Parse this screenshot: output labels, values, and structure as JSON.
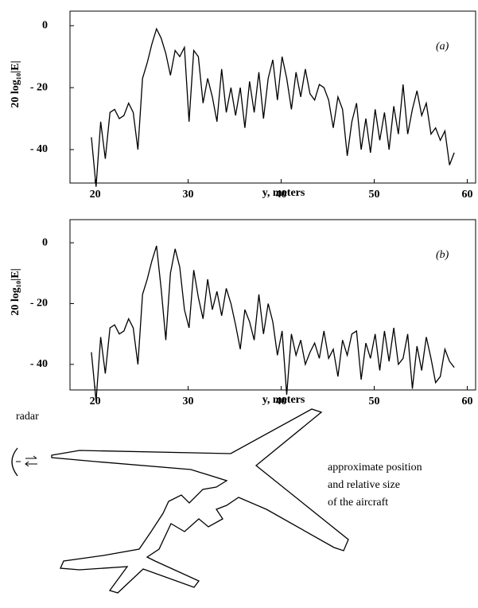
{
  "chart_data": [
    {
      "type": "line",
      "annotation": "(a)",
      "y_label": "20 log₁₀|E|",
      "x_label": "y, meters",
      "color": "#000000",
      "xlim": [
        17.3,
        60.9
      ],
      "ylim": [
        -50.8,
        4.7
      ],
      "xticks": [
        20,
        30,
        40,
        50,
        60
      ],
      "yticks": [
        0,
        {
          "value": -20,
          "label": "- 20"
        },
        {
          "value": -40,
          "label": "- 40"
        }
      ],
      "x": [
        19.6,
        20.1,
        20.6,
        21.1,
        21.6,
        22.1,
        22.6,
        23.1,
        23.6,
        24.1,
        24.6,
        25.1,
        25.6,
        26.1,
        26.6,
        27.1,
        27.6,
        28.1,
        28.6,
        29.1,
        29.6,
        30.1,
        30.6,
        31.1,
        31.6,
        32.1,
        32.6,
        33.1,
        33.6,
        34.1,
        34.6,
        35.1,
        35.6,
        36.1,
        36.6,
        37.1,
        37.6,
        38.1,
        38.6,
        39.1,
        39.6,
        40.1,
        40.6,
        41.1,
        41.6,
        42.1,
        42.6,
        43.1,
        43.6,
        44.1,
        44.6,
        45.1,
        45.6,
        46.1,
        46.6,
        47.1,
        47.6,
        48.1,
        48.6,
        49.1,
        49.6,
        50.1,
        50.6,
        51.1,
        51.6,
        52.1,
        52.6,
        53.1,
        53.6,
        54.1,
        54.6,
        55.1,
        55.6,
        56.1,
        56.6,
        57.1,
        57.6,
        58.1,
        58.6
      ],
      "values": [
        -36,
        -52,
        -31,
        -43,
        -28,
        -27,
        -30,
        -29,
        -25,
        -28,
        -40,
        -17,
        -12,
        -6,
        -1,
        -4,
        -9,
        -16,
        -8,
        -10,
        -7,
        -31,
        -8,
        -10,
        -25,
        -17,
        -23,
        -31,
        -14,
        -28,
        -20,
        -29,
        -20,
        -33,
        -18,
        -28,
        -15,
        -30,
        -17,
        -11,
        -24,
        -10,
        -17,
        -27,
        -15,
        -23,
        -14,
        -22,
        -24,
        -19,
        -20,
        -24,
        -33,
        -23,
        -27,
        -42,
        -31,
        -25,
        -40,
        -30,
        -41,
        -27,
        -37,
        -28,
        -40,
        -26,
        -35,
        -19,
        -35,
        -27,
        -21,
        -29,
        -25,
        -35,
        -33,
        -37,
        -34,
        -45,
        -41
      ]
    },
    {
      "type": "line",
      "annotation": "(b)",
      "y_label": "20 log₁₀|E|",
      "x_label": "y, meters",
      "color": "#000000",
      "xlim": [
        17.3,
        60.9
      ],
      "ylim": [
        -48.4,
        7.6
      ],
      "xticks": [
        20,
        30,
        40,
        50,
        60
      ],
      "yticks": [
        0,
        {
          "value": -20,
          "label": "- 20"
        },
        {
          "value": -40,
          "label": "- 40"
        }
      ],
      "x": [
        19.6,
        20.1,
        20.6,
        21.1,
        21.6,
        22.1,
        22.6,
        23.1,
        23.6,
        24.1,
        24.6,
        25.1,
        25.6,
        26.1,
        26.6,
        27.1,
        27.6,
        28.1,
        28.6,
        29.1,
        29.6,
        30.1,
        30.6,
        31.1,
        31.6,
        32.1,
        32.6,
        33.1,
        33.6,
        34.1,
        34.6,
        35.1,
        35.6,
        36.1,
        36.6,
        37.1,
        37.6,
        38.1,
        38.6,
        39.1,
        39.6,
        40.1,
        40.6,
        41.1,
        41.6,
        42.1,
        42.6,
        43.1,
        43.6,
        44.1,
        44.6,
        45.1,
        45.6,
        46.1,
        46.6,
        47.1,
        47.6,
        48.1,
        48.6,
        49.1,
        49.6,
        50.1,
        50.6,
        51.1,
        51.6,
        52.1,
        52.6,
        53.1,
        53.6,
        54.1,
        54.6,
        55.1,
        55.6,
        56.1,
        56.6,
        57.1,
        57.6,
        58.1,
        58.6
      ],
      "values": [
        -36,
        -52,
        -31,
        -43,
        -28,
        -27,
        -30,
        -29,
        -25,
        -28,
        -40,
        -17,
        -12,
        -6,
        -1,
        -15,
        -32,
        -10,
        -2,
        -8,
        -22,
        -28,
        -9,
        -18,
        -25,
        -12,
        -22,
        -16,
        -24,
        -15,
        -20,
        -27,
        -35,
        -22,
        -26,
        -32,
        -17,
        -30,
        -20,
        -26,
        -37,
        -29,
        -50,
        -30,
        -37,
        -32,
        -40,
        -36,
        -33,
        -38,
        -29,
        -38,
        -35,
        -44,
        -32,
        -37,
        -30,
        -29,
        -45,
        -33,
        -38,
        -30,
        -42,
        -29,
        -39,
        -28,
        -40,
        -38,
        -30,
        -48,
        -34,
        -42,
        -31,
        -38,
        -46,
        -44,
        -35,
        -39,
        -41
      ]
    }
  ],
  "diagram": {
    "radar_label": "radar",
    "aircraft_note": [
      "approximate position",
      "and relative size",
      "of the aircraft"
    ]
  }
}
